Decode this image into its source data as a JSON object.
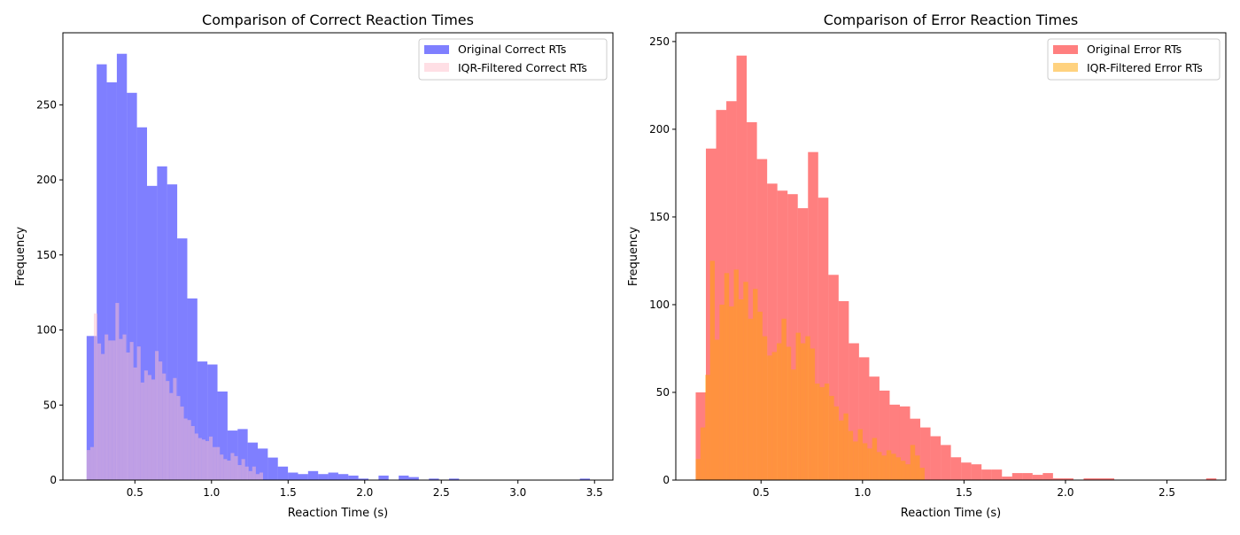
{
  "chart_data": [
    {
      "type": "bar",
      "subtype": "overlaid-histogram",
      "title": "Comparison of Correct Reaction Times",
      "xlabel": "Reaction Time (s)",
      "ylabel": "Frequency",
      "xlim": [
        0.03,
        3.62
      ],
      "ylim": [
        0,
        298
      ],
      "xticks": [
        0.5,
        1.0,
        1.5,
        2.0,
        2.5,
        3.0,
        3.5
      ],
      "xtick_labels": [
        "0.5",
        "1.0",
        "1.5",
        "2.0",
        "2.5",
        "3.0",
        "3.5"
      ],
      "yticks": [
        0,
        50,
        100,
        150,
        200,
        250
      ],
      "ytick_labels": [
        "0",
        "50",
        "100",
        "150",
        "200",
        "250"
      ],
      "legend_position": "top-right",
      "grid": false,
      "series": [
        {
          "name": "Original Correct RTs",
          "color": "#0000ff",
          "alpha": 0.5,
          "bin_start": 0.185,
          "bin_width": 0.0657,
          "values": [
            96,
            277,
            265,
            284,
            258,
            235,
            196,
            209,
            197,
            161,
            121,
            79,
            77,
            59,
            33,
            34,
            25,
            21,
            15,
            9,
            5,
            4,
            6,
            4,
            5,
            4,
            3,
            1,
            0,
            3,
            0,
            3,
            2,
            0,
            1,
            0,
            1,
            0,
            0,
            0,
            0,
            0,
            0,
            0,
            0,
            0,
            0,
            0,
            0,
            1
          ]
        },
        {
          "name": "IQR-Filtered Correct RTs",
          "color": "#ffc0cb",
          "alpha": 0.5,
          "bin_start": 0.185,
          "bin_width": 0.0235,
          "values": [
            20,
            22,
            111,
            91,
            84,
            97,
            93,
            93,
            118,
            94,
            97,
            85,
            92,
            75,
            89,
            65,
            73,
            70,
            67,
            86,
            79,
            71,
            66,
            58,
            68,
            56,
            49,
            41,
            40,
            36,
            31,
            28,
            27,
            26,
            29,
            22,
            22,
            17,
            14,
            13,
            18,
            16,
            10,
            14,
            9,
            6,
            9,
            4,
            5
          ]
        }
      ]
    },
    {
      "type": "bar",
      "subtype": "overlaid-histogram",
      "title": "Comparison of Error Reaction Times",
      "xlabel": "Reaction Time (s)",
      "ylabel": "Frequency",
      "xlim": [
        0.08,
        2.79
      ],
      "ylim": [
        0,
        255
      ],
      "xticks": [
        0.5,
        1.0,
        1.5,
        2.0,
        2.5
      ],
      "xtick_labels": [
        "0.5",
        "1.0",
        "1.5",
        "2.0",
        "2.5"
      ],
      "yticks": [
        0,
        50,
        100,
        150,
        200,
        250
      ],
      "ytick_labels": [
        "0",
        "50",
        "100",
        "150",
        "200",
        "250"
      ],
      "legend_position": "top-right",
      "grid": false,
      "series": [
        {
          "name": "Original Error RTs",
          "color": "#ff0000",
          "alpha": 0.5,
          "bin_start": 0.178,
          "bin_width": 0.0503,
          "values": [
            50,
            189,
            211,
            216,
            242,
            204,
            183,
            169,
            165,
            163,
            155,
            187,
            161,
            117,
            102,
            78,
            70,
            59,
            51,
            43,
            42,
            35,
            30,
            25,
            20,
            13,
            10,
            9,
            6,
            6,
            2,
            4,
            4,
            3,
            4,
            1,
            1,
            0,
            1,
            1,
            1,
            0,
            0,
            0,
            0,
            0,
            0,
            0,
            0,
            0,
            1
          ]
        },
        {
          "name": "IQR-Filtered Error RTs",
          "color": "#ffa500",
          "alpha": 0.5,
          "bin_start": 0.178,
          "bin_width": 0.0235,
          "values": [
            12,
            30,
            60,
            125,
            80,
            100,
            118,
            99,
            120,
            103,
            113,
            92,
            109,
            96,
            82,
            71,
            73,
            78,
            92,
            76,
            63,
            84,
            78,
            82,
            75,
            55,
            53,
            55,
            48,
            42,
            34,
            38,
            28,
            22,
            29,
            21,
            18,
            24,
            16,
            14,
            17,
            15,
            13,
            11,
            9,
            20,
            14,
            7
          ]
        }
      ]
    }
  ]
}
